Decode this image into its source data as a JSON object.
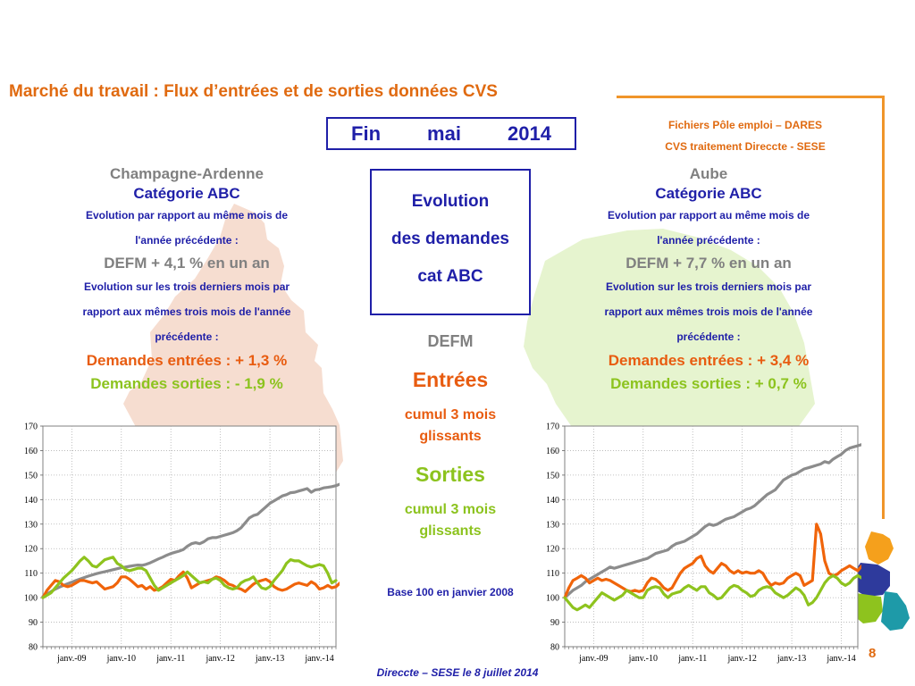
{
  "header": {
    "title": "Marché du travail : Flux d’entrées et de sorties données CVS",
    "date": [
      "Fin",
      "mai",
      "2014"
    ],
    "source_line1": "Fichiers Pôle emploi – DARES",
    "source_line2": "CVS traitement Direccte - SESE"
  },
  "center": {
    "box_lines": [
      "Evolution",
      "des  demandes",
      "cat ABC"
    ],
    "defm": "DEFM",
    "entrees": "Entrées",
    "entrees_sub1": "cumul 3 mois",
    "entrees_sub2": "glissants",
    "sorties": "Sorties",
    "sorties_sub1": "cumul 3 mois",
    "sorties_sub2": "glissants",
    "base": "Base 100 en janvier 2008"
  },
  "left_panel": {
    "region": "Champagne-Ardenne",
    "category": "Catégorie ABC",
    "evo_year_1": "Evolution par rapport au même mois de",
    "evo_year_2": "l'année précédente :",
    "defm": "DEFM +  4,1 % en un an",
    "evo_3m_1": "Evolution sur les trois derniers mois par",
    "evo_3m_2": "rapport aux mêmes trois mois de l'année",
    "evo_3m_3": "précédente :",
    "entrees": "Demandes entrées : +  1,3 %",
    "sorties": "Demandes sorties : -  1,9 %"
  },
  "right_panel": {
    "region": "Aube",
    "category": "Catégorie ABC",
    "evo_year_1": "Evolution par rapport au même mois de",
    "evo_year_2": "l'année précédente :",
    "defm": "DEFM +  7,7 % en un an",
    "evo_3m_1": "Evolution sur les trois derniers mois par",
    "evo_3m_2": "rapport aux mêmes trois mois de l'année",
    "evo_3m_3": "précédente :",
    "entrees": "Demandes entrées : +  3,4 %",
    "sorties": "Demandes sorties : +  0,7 %"
  },
  "footer": {
    "text": "Direccte – SESE le 8 juillet 2014",
    "page": "8"
  },
  "colors": {
    "defm": "#8c8c8c",
    "entrees": "#f0640a",
    "sorties": "#8ec31e",
    "map_left": "#f6ddd0",
    "map_right": "#e6f4cf"
  },
  "chart_data": [
    {
      "type": "line",
      "title": "",
      "ylim": [
        80,
        170
      ],
      "yticks": [
        80,
        90,
        100,
        110,
        120,
        130,
        140,
        150,
        160,
        170
      ],
      "x_start": "2008-06",
      "x_end": "2014-05",
      "xticks": [
        "janv.-09",
        "janv.-10",
        "janv.-11",
        "janv.-12",
        "janv.-13",
        "janv.-14"
      ],
      "grid": true,
      "series": [
        {
          "key": "defm",
          "values": [
            100.5,
            101.5,
            102.5,
            103.5,
            104.3,
            105,
            105.7,
            106.3,
            107,
            107.6,
            108.2,
            108.8,
            109.3,
            109.8,
            110.2,
            110.6,
            111,
            111.4,
            111.8,
            112.2,
            112.5,
            112.8,
            113.1,
            113.3,
            113.2,
            113.6,
            114.2,
            115,
            115.8,
            116.5,
            117.3,
            118,
            118.5,
            119,
            119.6,
            121,
            122,
            122.4,
            122,
            122.8,
            124,
            124.5,
            124.5,
            125,
            125.5,
            126,
            126.5,
            127.3,
            128.5,
            130.5,
            132.5,
            133.5,
            134,
            135.5,
            137,
            138.5,
            139.5,
            140.5,
            141.5,
            142,
            142.8,
            143,
            143.5,
            144,
            144.5,
            143,
            144,
            144.2,
            144.8,
            145,
            145.3,
            145.7,
            146.3,
            147.5,
            149
          ]
        },
        {
          "key": "entrees",
          "values": [
            100,
            103,
            105,
            107,
            106.5,
            105,
            104.5,
            105,
            106,
            107,
            107,
            106.5,
            106,
            106.5,
            105,
            103.5,
            104,
            104.5,
            106,
            108.5,
            108.5,
            107.5,
            106,
            104.5,
            105,
            103.5,
            104.5,
            103,
            103.5,
            104.5,
            106,
            107.5,
            107,
            109,
            110.5,
            108,
            104,
            105,
            106,
            106.5,
            107,
            107.5,
            108.5,
            108,
            107,
            105.5,
            105,
            104,
            103.5,
            102.5,
            104,
            105.5,
            106.5,
            107,
            107.5,
            106.5,
            104.5,
            103.5,
            103,
            103.5,
            104.5,
            105.5,
            106,
            105.5,
            105,
            106.5,
            105.5,
            103.5,
            104,
            105,
            104,
            104.5,
            106,
            107,
            106
          ]
        },
        {
          "key": "sorties",
          "values": [
            100,
            101,
            102,
            104,
            106,
            108,
            109.5,
            111,
            113,
            115,
            116.5,
            115,
            113,
            112.5,
            114,
            115.5,
            116,
            116.5,
            114,
            113,
            111.5,
            111,
            111.5,
            112,
            112,
            111,
            108,
            105,
            103,
            104,
            105,
            106,
            107,
            108,
            109,
            110.5,
            109,
            107.5,
            106,
            106.5,
            106,
            107.5,
            108,
            107,
            105,
            104,
            103.5,
            104,
            106,
            107,
            107.5,
            108.5,
            106,
            104,
            103.5,
            104.5,
            107,
            109,
            111,
            114,
            115.5,
            115,
            115,
            114,
            113,
            112.5,
            113,
            113.5,
            113,
            110,
            106,
            107
          ]
        }
      ]
    },
    {
      "type": "line",
      "title": "",
      "ylim": [
        80,
        170
      ],
      "yticks": [
        80,
        90,
        100,
        110,
        120,
        130,
        140,
        150,
        160,
        170
      ],
      "x_start": "2008-06",
      "x_end": "2014-05",
      "xticks": [
        "janv.-09",
        "janv.-10",
        "janv.-11",
        "janv.-12",
        "janv.-13",
        "janv.-14"
      ],
      "grid": true,
      "series": [
        {
          "key": "defm",
          "values": [
            100,
            101.5,
            103,
            104,
            105,
            106.5,
            107.5,
            108.5,
            109.5,
            110.5,
            111.5,
            112.5,
            112,
            112.5,
            113,
            113.5,
            114,
            114.5,
            115,
            115.5,
            116,
            117,
            118,
            118.5,
            119,
            119.5,
            121,
            122,
            122.5,
            123,
            124,
            125,
            126,
            127.5,
            129,
            130,
            129.5,
            130,
            131,
            132,
            132.5,
            133,
            134,
            135,
            136,
            136.5,
            137.5,
            139,
            140.5,
            142,
            143,
            144,
            146,
            148,
            149,
            150,
            150.5,
            151.5,
            152.5,
            153,
            153.5,
            154,
            154.5,
            155.5,
            155,
            156.5,
            157.5,
            158.5,
            160,
            161,
            161.5,
            162,
            162.5,
            163.5,
            166
          ]
        },
        {
          "key": "entrees",
          "values": [
            100,
            104,
            107,
            108,
            109,
            108,
            106,
            107,
            108,
            107,
            107.5,
            107,
            106,
            105,
            104,
            103,
            102.5,
            103,
            102.5,
            103,
            106,
            108,
            107.5,
            106,
            104,
            103,
            104,
            107,
            110,
            112,
            113,
            114,
            116,
            117,
            113,
            111,
            110,
            112,
            114,
            113,
            111,
            110,
            111,
            110,
            110.5,
            110,
            110,
            111,
            110,
            107,
            105,
            106,
            105.5,
            106,
            108,
            109,
            110,
            109,
            105,
            106,
            107,
            130,
            126,
            115,
            110,
            109,
            109.5,
            111,
            112,
            113,
            112,
            111,
            113,
            114,
            112
          ]
        },
        {
          "key": "sorties",
          "values": [
            100,
            98,
            96,
            95,
            96,
            97,
            96,
            98,
            100,
            102,
            101,
            100,
            99,
            100,
            101,
            103,
            102,
            101,
            100,
            100,
            103,
            104,
            104.5,
            104,
            101.5,
            100,
            101.5,
            102,
            102.5,
            104,
            105,
            104,
            103,
            104.5,
            104.5,
            102,
            101,
            99.5,
            100,
            102,
            104,
            105,
            104.5,
            103,
            102,
            100.5,
            101,
            103,
            104,
            104.5,
            104,
            102,
            101,
            100,
            101,
            102.5,
            104,
            103,
            101,
            97,
            98,
            100,
            103,
            106,
            108,
            109,
            108,
            106,
            105,
            106,
            108,
            109,
            108,
            108.5,
            105
          ]
        }
      ]
    }
  ]
}
